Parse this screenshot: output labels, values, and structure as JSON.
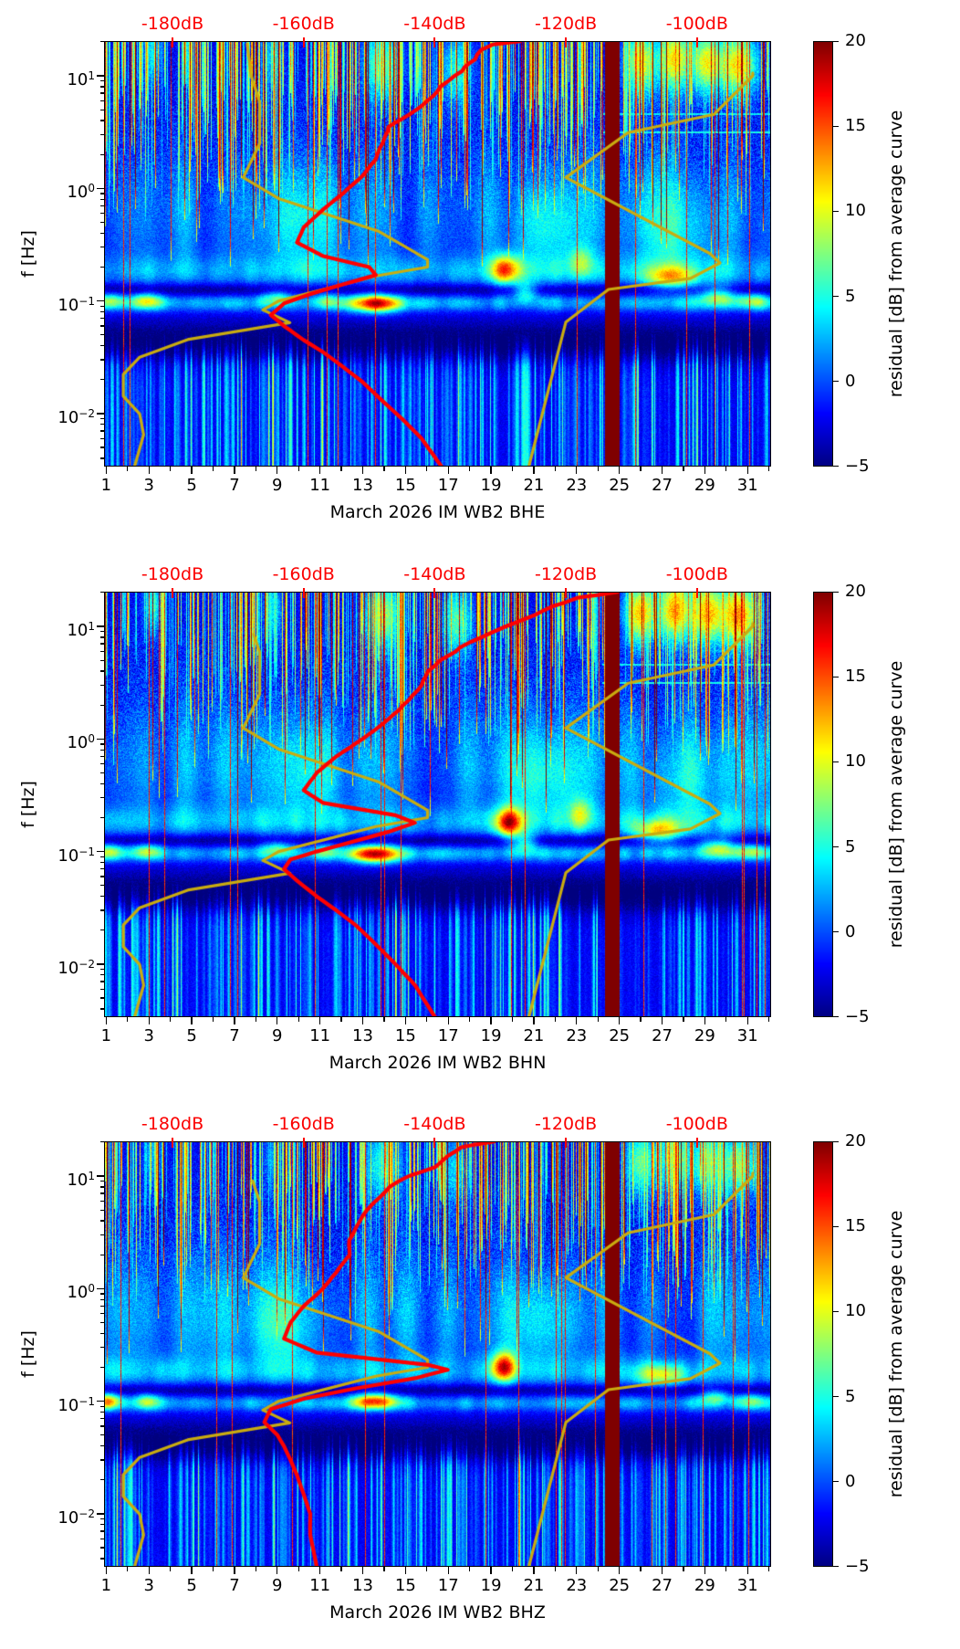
{
  "figure": {
    "background": "#ffffff"
  },
  "colors": {
    "top_axis_red": "#fb0000",
    "mean_curve_red": "#ff0000",
    "noise_model_yellow": "#c9ac10",
    "axis_black": "#000000",
    "gap_band_dark_red": "#800000"
  },
  "chart_data": {
    "type": "heatmap",
    "subtype": "seismic-spectrogram-residual",
    "station": "IM WB2",
    "month": "March 2026",
    "frequency_range_hz": [
      0.0034,
      20.3
    ],
    "day_range": [
      0.9,
      32.1
    ],
    "colorbar": {
      "min": -5,
      "max": 20,
      "tick_labels": [
        "20",
        "15",
        "10",
        "5",
        "0",
        "−5"
      ],
      "tick_values": [
        20,
        15,
        10,
        5,
        0,
        -5
      ],
      "label": "residual [dB] from average curve",
      "colormap": "jet"
    },
    "top_axis": {
      "labels": [
        "-180dB",
        "-160dB",
        "-140dB",
        "-120dB",
        "-100dB"
      ],
      "values_db": [
        -180,
        -160,
        -140,
        -120,
        -100
      ]
    },
    "y_axis": {
      "label": "f [Hz]",
      "ticks": [
        {
          "base": "10",
          "exp": "1",
          "value": 10
        },
        {
          "base": "10",
          "exp": "0",
          "value": 1
        },
        {
          "base": "10",
          "exp": "−1",
          "value": 0.1
        },
        {
          "base": "10",
          "exp": "−2",
          "value": 0.01
        }
      ]
    },
    "x_axis": {
      "tick_labels": [
        "1",
        "3",
        "5",
        "7",
        "9",
        "11",
        "13",
        "15",
        "17",
        "19",
        "21",
        "23",
        "25",
        "27",
        "29",
        "31"
      ],
      "tick_values": [
        1,
        3,
        5,
        7,
        9,
        11,
        13,
        15,
        17,
        19,
        21,
        23,
        25,
        27,
        29,
        31
      ],
      "minor_tick_values": [
        2,
        4,
        6,
        8,
        10,
        12,
        14,
        16,
        18,
        20,
        22,
        24,
        26,
        28,
        30,
        32
      ]
    },
    "data_gap_days": [
      24.32,
      25.02
    ],
    "noise_models": {
      "nlnm_period_s_db": [
        [
          0.052,
          -168.6
        ],
        [
          0.1,
          -168.0
        ],
        [
          0.17,
          -166.7
        ],
        [
          0.4,
          -166.7
        ],
        [
          0.8,
          -169.2
        ],
        [
          1.24,
          -163.7
        ],
        [
          2.4,
          -148.6
        ],
        [
          4.3,
          -141.1
        ],
        [
          5.0,
          -141.1
        ],
        [
          6.0,
          -149.0
        ],
        [
          10.0,
          -163.8
        ],
        [
          12.0,
          -166.2
        ],
        [
          15.6,
          -162.1
        ],
        [
          21.9,
          -177.5
        ],
        [
          31.6,
          -185.0
        ],
        [
          45.0,
          -187.5
        ],
        [
          70.0,
          -187.5
        ],
        [
          101.0,
          -185.0
        ],
        [
          154.0,
          -184.4
        ],
        [
          328.0,
          -186.0
        ]
      ],
      "nhnm_period_s_db": [
        [
          0.094,
          -91.5
        ],
        [
          0.1,
          -91.5
        ],
        [
          0.22,
          -97.4
        ],
        [
          0.32,
          -110.5
        ],
        [
          0.8,
          -120.0
        ],
        [
          3.8,
          -98.0
        ],
        [
          4.6,
          -96.5
        ],
        [
          6.3,
          -101.0
        ],
        [
          7.9,
          -113.5
        ],
        [
          15.4,
          -120.0
        ],
        [
          354.8,
          -126.0
        ]
      ]
    },
    "panels": [
      {
        "channel": "BHE",
        "xlabel": "March 2026 IM WB2  BHE",
        "seed": 7,
        "model_fmax": {
          "nlnm": 19.5,
          "nhnm": 10.6
        },
        "top_blob_scale": 1.0,
        "mean_curve_f_db": [
          [
            20.3,
            -127
          ],
          [
            19,
            -131
          ],
          [
            17,
            -133
          ],
          [
            14,
            -134
          ],
          [
            11,
            -136
          ],
          [
            8,
            -139
          ],
          [
            6,
            -141
          ],
          [
            4.5,
            -144
          ],
          [
            3.5,
            -147
          ],
          [
            2.5,
            -148
          ],
          [
            1.8,
            -149
          ],
          [
            1.3,
            -151
          ],
          [
            0.9,
            -154
          ],
          [
            0.65,
            -157
          ],
          [
            0.45,
            -160
          ],
          [
            0.33,
            -161
          ],
          [
            0.25,
            -157
          ],
          [
            0.2,
            -150
          ],
          [
            0.17,
            -149
          ],
          [
            0.14,
            -154
          ],
          [
            0.115,
            -159
          ],
          [
            0.095,
            -163
          ],
          [
            0.075,
            -165
          ],
          [
            0.06,
            -163
          ],
          [
            0.045,
            -160
          ],
          [
            0.035,
            -157
          ],
          [
            0.026,
            -154
          ],
          [
            0.019,
            -151
          ],
          [
            0.013,
            -148
          ],
          [
            0.009,
            -145
          ],
          [
            0.006,
            -142
          ],
          [
            0.0034,
            -139
          ]
        ],
        "blobs": [
          [
            1.2,
            0.1,
            8,
            0.5,
            0.05
          ],
          [
            2.9,
            0.1,
            9,
            0.5,
            0.05
          ],
          [
            9.0,
            0.105,
            7,
            0.5,
            0.05
          ],
          [
            11.3,
            0.1,
            6,
            0.4,
            0.05
          ],
          [
            13.6,
            0.095,
            16,
            0.8,
            0.055
          ],
          [
            19.7,
            0.19,
            14,
            0.45,
            0.09
          ],
          [
            20.6,
            0.12,
            7,
            0.4,
            0.06
          ],
          [
            23.2,
            0.22,
            6,
            0.4,
            0.1
          ],
          [
            27.4,
            0.16,
            9,
            0.8,
            0.07
          ],
          [
            29.6,
            0.11,
            8,
            0.6,
            0.06
          ],
          [
            31.2,
            0.1,
            7,
            0.5,
            0.05
          ],
          [
            21.5,
            0.45,
            4,
            1.2,
            0.3
          ],
          [
            10.0,
            0.5,
            3,
            1.5,
            0.35
          ],
          [
            28.0,
            0.4,
            3.5,
            1.5,
            0.35
          ]
        ],
        "interference_lines": true
      },
      {
        "channel": "BHN",
        "xlabel": "March 2026 IM WB2  BHN",
        "seed": 8,
        "model_fmax": {
          "nlnm": 8.5,
          "nhnm": 10.6
        },
        "top_blob_scale": 1.15,
        "mean_curve_f_db": [
          [
            20.3,
            -112
          ],
          [
            18,
            -118
          ],
          [
            15,
            -122
          ],
          [
            12.5,
            -125
          ],
          [
            10,
            -129
          ],
          [
            8,
            -133
          ],
          [
            6.5,
            -136
          ],
          [
            5,
            -139
          ],
          [
            4,
            -141
          ],
          [
            3,
            -142
          ],
          [
            2.2,
            -144
          ],
          [
            1.5,
            -147
          ],
          [
            1.0,
            -151
          ],
          [
            0.7,
            -155
          ],
          [
            0.5,
            -158
          ],
          [
            0.35,
            -160
          ],
          [
            0.27,
            -157
          ],
          [
            0.21,
            -146
          ],
          [
            0.18,
            -143
          ],
          [
            0.15,
            -147
          ],
          [
            0.12,
            -153
          ],
          [
            0.1,
            -158
          ],
          [
            0.085,
            -162
          ],
          [
            0.07,
            -163
          ],
          [
            0.055,
            -161
          ],
          [
            0.04,
            -158
          ],
          [
            0.03,
            -155
          ],
          [
            0.022,
            -152
          ],
          [
            0.015,
            -149
          ],
          [
            0.01,
            -146
          ],
          [
            0.0065,
            -143
          ],
          [
            0.0034,
            -140
          ]
        ],
        "blobs": [
          [
            1.1,
            0.1,
            7,
            0.5,
            0.05
          ],
          [
            2.9,
            0.1,
            8,
            0.5,
            0.05
          ],
          [
            9.0,
            0.105,
            7,
            0.5,
            0.05
          ],
          [
            11.3,
            0.1,
            6,
            0.4,
            0.05
          ],
          [
            13.6,
            0.095,
            17,
            0.8,
            0.055
          ],
          [
            19.8,
            0.18,
            15,
            0.45,
            0.09
          ],
          [
            20.6,
            0.12,
            7,
            0.4,
            0.06
          ],
          [
            23.2,
            0.22,
            6,
            0.4,
            0.1
          ],
          [
            26.8,
            0.15,
            10,
            0.8,
            0.07
          ],
          [
            29.6,
            0.11,
            8,
            0.6,
            0.06
          ],
          [
            31.2,
            0.1,
            7,
            0.5,
            0.05
          ],
          [
            21.5,
            0.45,
            4,
            1.2,
            0.3
          ],
          [
            10.0,
            0.5,
            3,
            1.5,
            0.35
          ],
          [
            28.0,
            0.4,
            3.5,
            1.5,
            0.35
          ]
        ],
        "interference_lines": true
      },
      {
        "channel": "BHZ",
        "xlabel": "March 2026 IM WB2  BHZ",
        "seed": 9,
        "model_fmax": {
          "nlnm": 9.0,
          "nhnm": 10.6
        },
        "top_blob_scale": 0.75,
        "mean_curve_f_db": [
          [
            20.3,
            -131
          ],
          [
            18,
            -136
          ],
          [
            15,
            -138
          ],
          [
            12,
            -140
          ],
          [
            10,
            -144
          ],
          [
            8,
            -147
          ],
          [
            6,
            -149
          ],
          [
            4.5,
            -151
          ],
          [
            3.5,
            -152
          ],
          [
            2.7,
            -153
          ],
          [
            2.0,
            -153
          ],
          [
            1.4,
            -155
          ],
          [
            1.0,
            -157
          ],
          [
            0.7,
            -160
          ],
          [
            0.5,
            -162
          ],
          [
            0.36,
            -163
          ],
          [
            0.27,
            -158
          ],
          [
            0.21,
            -141
          ],
          [
            0.19,
            -138
          ],
          [
            0.16,
            -143
          ],
          [
            0.13,
            -152
          ],
          [
            0.105,
            -160
          ],
          [
            0.085,
            -165
          ],
          [
            0.065,
            -166
          ],
          [
            0.05,
            -164
          ],
          [
            0.04,
            -163
          ],
          [
            0.03,
            -162
          ],
          [
            0.022,
            -161
          ],
          [
            0.015,
            -160
          ],
          [
            0.01,
            -159
          ],
          [
            0.0065,
            -159
          ],
          [
            0.0034,
            -158
          ]
        ],
        "blobs": [
          [
            1.1,
            0.1,
            12,
            0.4,
            0.05
          ],
          [
            2.9,
            0.1,
            7,
            0.4,
            0.05
          ],
          [
            13.6,
            0.1,
            15,
            0.7,
            0.05
          ],
          [
            19.6,
            0.2,
            16,
            0.4,
            0.09
          ],
          [
            27.0,
            0.17,
            9,
            0.8,
            0.07
          ],
          [
            29.5,
            0.11,
            7,
            0.5,
            0.05
          ],
          [
            31.2,
            0.1,
            6,
            0.5,
            0.05
          ],
          [
            21.3,
            0.5,
            4,
            1.2,
            0.3
          ],
          [
            9.5,
            0.45,
            3,
            1.3,
            0.3
          ]
        ],
        "interference_lines": false
      }
    ],
    "texture": {
      "bands": [
        {
          "center_logf": -0.74,
          "sigma": 0.1,
          "amp": 2.2,
          "mod": 2.4
        },
        {
          "center_logf": -1.02,
          "sigma": 0.052,
          "amp": 3.0,
          "mod": 3.0
        },
        {
          "center_logf": -0.9,
          "sigma": 0.04,
          "amp": -3.2,
          "mod": 0
        },
        {
          "center_logf": -1.38,
          "sigma": 0.13,
          "amp": -3.6,
          "mod": 0
        }
      ],
      "cloud": {
        "center_logf": -0.25,
        "sigma": 0.42,
        "amp_min": 1.2,
        "amp_max": 5.5
      },
      "haze": {
        "center_logf": 0.55,
        "sigma": 0.5,
        "amp": 1.2
      },
      "speckle_base": 0.85,
      "stripes": {
        "chance": 0.5,
        "amp_min": 2.5,
        "amp_max": 15,
        "red_chance": 0.075,
        "hairline_chance": 0.015
      },
      "lf_stripes": {
        "start_logf": -1.26,
        "full_logf": -1.58,
        "amp": 10
      },
      "top_blobs": [
        [
          13.9,
          1.1,
          9,
          0.6,
          0.22
        ],
        [
          17.4,
          1.05,
          7,
          0.5,
          0.22
        ],
        [
          26.0,
          1.12,
          12,
          0.5,
          0.2
        ],
        [
          27.6,
          1.15,
          13,
          0.5,
          0.2
        ],
        [
          29.1,
          1.12,
          12,
          0.5,
          0.2
        ],
        [
          30.6,
          1.1,
          13,
          0.6,
          0.2
        ],
        [
          3.2,
          1.2,
          6,
          0.3,
          0.2
        ],
        [
          8.8,
          1.15,
          5,
          0.3,
          0.2
        ]
      ]
    }
  }
}
